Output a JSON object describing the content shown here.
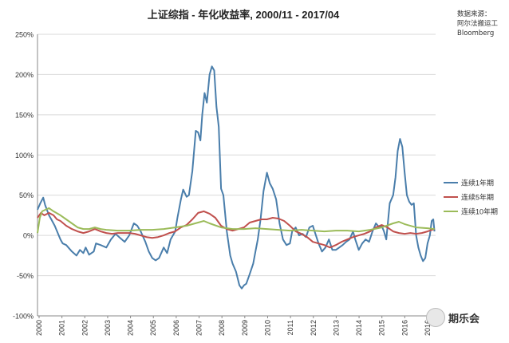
{
  "source": {
    "lines": [
      "数据来源：",
      "阿尔法搬运工",
      "Bloomberg"
    ]
  },
  "watermark": {
    "text": "期乐会"
  },
  "chart_data": {
    "type": "line",
    "title": "上证综指 - 年化收益率, 2000/11 - 2017/04",
    "xlabel": "",
    "ylabel": "",
    "xlim": [
      2000,
      2017.35
    ],
    "ylim": [
      -100,
      250
    ],
    "y_ticks": [
      -100,
      -50,
      0,
      50,
      100,
      150,
      200,
      250
    ],
    "y_tick_labels": [
      "-100%",
      "-50%",
      "0%",
      "50%",
      "100%",
      "150%",
      "200%",
      "250%"
    ],
    "x_tick_labels": [
      "2000",
      "2001",
      "2002",
      "2003",
      "2004",
      "2005",
      "2006",
      "2007",
      "2008",
      "2009",
      "2010",
      "2011",
      "2012",
      "2013",
      "2014",
      "2015",
      "2016",
      "2016"
    ],
    "grid": true,
    "legend_position": "right",
    "series": [
      {
        "name": "连续1年期",
        "color": "#4a7eab",
        "points": [
          [
            2000.0,
            32
          ],
          [
            2000.12,
            40
          ],
          [
            2000.25,
            47
          ],
          [
            2000.33,
            38
          ],
          [
            2000.5,
            25
          ],
          [
            2000.6,
            20
          ],
          [
            2000.75,
            12
          ],
          [
            2001.0,
            -5
          ],
          [
            2001.1,
            -10
          ],
          [
            2001.25,
            -12
          ],
          [
            2001.5,
            -20
          ],
          [
            2001.7,
            -25
          ],
          [
            2001.85,
            -18
          ],
          [
            2002.0,
            -22
          ],
          [
            2002.1,
            -15
          ],
          [
            2002.25,
            -24
          ],
          [
            2002.45,
            -20
          ],
          [
            2002.55,
            -10
          ],
          [
            2002.75,
            -12
          ],
          [
            2003.0,
            -15
          ],
          [
            2003.2,
            -5
          ],
          [
            2003.4,
            2
          ],
          [
            2003.6,
            -3
          ],
          [
            2003.8,
            -8
          ],
          [
            2004.0,
            0
          ],
          [
            2004.2,
            15
          ],
          [
            2004.35,
            12
          ],
          [
            2004.5,
            5
          ],
          [
            2004.7,
            -8
          ],
          [
            2004.85,
            -20
          ],
          [
            2005.0,
            -28
          ],
          [
            2005.15,
            -31
          ],
          [
            2005.3,
            -28
          ],
          [
            2005.5,
            -15
          ],
          [
            2005.65,
            -22
          ],
          [
            2005.8,
            -5
          ],
          [
            2006.0,
            5
          ],
          [
            2006.1,
            22
          ],
          [
            2006.25,
            45
          ],
          [
            2006.35,
            57
          ],
          [
            2006.5,
            48
          ],
          [
            2006.6,
            50
          ],
          [
            2006.75,
            80
          ],
          [
            2006.9,
            130
          ],
          [
            2007.0,
            128
          ],
          [
            2007.1,
            118
          ],
          [
            2007.18,
            150
          ],
          [
            2007.28,
            177
          ],
          [
            2007.38,
            165
          ],
          [
            2007.5,
            200
          ],
          [
            2007.6,
            210
          ],
          [
            2007.7,
            205
          ],
          [
            2007.8,
            160
          ],
          [
            2007.9,
            135
          ],
          [
            2008.0,
            58
          ],
          [
            2008.1,
            50
          ],
          [
            2008.25,
            5
          ],
          [
            2008.4,
            -25
          ],
          [
            2008.5,
            -35
          ],
          [
            2008.65,
            -45
          ],
          [
            2008.8,
            -62
          ],
          [
            2008.9,
            -66
          ],
          [
            2009.0,
            -62
          ],
          [
            2009.1,
            -60
          ],
          [
            2009.25,
            -48
          ],
          [
            2009.4,
            -35
          ],
          [
            2009.5,
            -20
          ],
          [
            2009.6,
            -5
          ],
          [
            2009.72,
            20
          ],
          [
            2009.85,
            55
          ],
          [
            2010.0,
            78
          ],
          [
            2010.12,
            65
          ],
          [
            2010.25,
            58
          ],
          [
            2010.4,
            45
          ],
          [
            2010.55,
            15
          ],
          [
            2010.7,
            -5
          ],
          [
            2010.85,
            -12
          ],
          [
            2011.0,
            -10
          ],
          [
            2011.1,
            5
          ],
          [
            2011.25,
            10
          ],
          [
            2011.4,
            0
          ],
          [
            2011.55,
            2
          ],
          [
            2011.7,
            -2
          ],
          [
            2011.85,
            10
          ],
          [
            2012.0,
            12
          ],
          [
            2012.1,
            3
          ],
          [
            2012.25,
            -10
          ],
          [
            2012.4,
            -20
          ],
          [
            2012.55,
            -15
          ],
          [
            2012.7,
            -5
          ],
          [
            2012.85,
            -18
          ],
          [
            2013.0,
            -18
          ],
          [
            2013.15,
            -15
          ],
          [
            2013.3,
            -12
          ],
          [
            2013.45,
            -8
          ],
          [
            2013.6,
            -5
          ],
          [
            2013.75,
            5
          ],
          [
            2013.85,
            -5
          ],
          [
            2014.0,
            -18
          ],
          [
            2014.15,
            -10
          ],
          [
            2014.3,
            -5
          ],
          [
            2014.45,
            -8
          ],
          [
            2014.6,
            5
          ],
          [
            2014.75,
            15
          ],
          [
            2014.9,
            10
          ],
          [
            2015.0,
            12
          ],
          [
            2015.1,
            5
          ],
          [
            2015.2,
            -5
          ],
          [
            2015.35,
            40
          ],
          [
            2015.5,
            50
          ],
          [
            2015.6,
            72
          ],
          [
            2015.7,
            105
          ],
          [
            2015.8,
            120
          ],
          [
            2015.9,
            110
          ],
          [
            2016.0,
            78
          ],
          [
            2016.1,
            50
          ],
          [
            2016.2,
            42
          ],
          [
            2016.3,
            38
          ],
          [
            2016.4,
            40
          ],
          [
            2016.5,
            0
          ],
          [
            2016.6,
            -15
          ],
          [
            2016.7,
            -25
          ],
          [
            2016.8,
            -32
          ],
          [
            2016.9,
            -28
          ],
          [
            2017.0,
            -10
          ],
          [
            2017.1,
            0
          ],
          [
            2017.18,
            18
          ],
          [
            2017.25,
            20
          ],
          [
            2017.3,
            5
          ]
        ]
      },
      {
        "name": "连续5年期",
        "color": "#c0504d",
        "points": [
          [
            2000.0,
            22
          ],
          [
            2000.15,
            28
          ],
          [
            2000.3,
            25
          ],
          [
            2000.5,
            28
          ],
          [
            2000.7,
            25
          ],
          [
            2000.85,
            20
          ],
          [
            2001.0,
            18
          ],
          [
            2001.25,
            12
          ],
          [
            2001.5,
            8
          ],
          [
            2001.75,
            5
          ],
          [
            2002.0,
            3
          ],
          [
            2002.25,
            5
          ],
          [
            2002.5,
            8
          ],
          [
            2002.75,
            5
          ],
          [
            2003.0,
            3
          ],
          [
            2003.25,
            2
          ],
          [
            2003.5,
            3
          ],
          [
            2003.75,
            3
          ],
          [
            2004.0,
            3
          ],
          [
            2004.25,
            2
          ],
          [
            2004.5,
            0
          ],
          [
            2004.75,
            -2
          ],
          [
            2005.0,
            -3
          ],
          [
            2005.25,
            -2
          ],
          [
            2005.5,
            0
          ],
          [
            2005.75,
            3
          ],
          [
            2006.0,
            5
          ],
          [
            2006.25,
            10
          ],
          [
            2006.5,
            13
          ],
          [
            2006.75,
            20
          ],
          [
            2007.0,
            28
          ],
          [
            2007.25,
            30
          ],
          [
            2007.5,
            27
          ],
          [
            2007.75,
            22
          ],
          [
            2008.0,
            12
          ],
          [
            2008.25,
            8
          ],
          [
            2008.5,
            6
          ],
          [
            2008.75,
            8
          ],
          [
            2009.0,
            10
          ],
          [
            2009.25,
            16
          ],
          [
            2009.5,
            18
          ],
          [
            2009.75,
            20
          ],
          [
            2010.0,
            20
          ],
          [
            2010.25,
            22
          ],
          [
            2010.5,
            21
          ],
          [
            2010.75,
            18
          ],
          [
            2011.0,
            12
          ],
          [
            2011.25,
            5
          ],
          [
            2011.5,
            2
          ],
          [
            2011.75,
            -2
          ],
          [
            2012.0,
            -8
          ],
          [
            2012.25,
            -10
          ],
          [
            2012.5,
            -12
          ],
          [
            2012.75,
            -15
          ],
          [
            2013.0,
            -12
          ],
          [
            2013.25,
            -8
          ],
          [
            2013.5,
            -5
          ],
          [
            2013.75,
            -2
          ],
          [
            2014.0,
            0
          ],
          [
            2014.25,
            2
          ],
          [
            2014.5,
            5
          ],
          [
            2014.75,
            10
          ],
          [
            2015.0,
            13
          ],
          [
            2015.25,
            10
          ],
          [
            2015.5,
            5
          ],
          [
            2015.75,
            3
          ],
          [
            2016.0,
            2
          ],
          [
            2016.25,
            3
          ],
          [
            2016.5,
            2
          ],
          [
            2016.75,
            3
          ],
          [
            2017.0,
            5
          ],
          [
            2017.3,
            8
          ]
        ]
      },
      {
        "name": "连续10年期",
        "color": "#9bbb59",
        "points": [
          [
            2000.0,
            3
          ],
          [
            2000.1,
            22
          ],
          [
            2000.2,
            30
          ],
          [
            2000.35,
            32
          ],
          [
            2000.5,
            34
          ],
          [
            2000.7,
            30
          ],
          [
            2001.0,
            25
          ],
          [
            2001.25,
            20
          ],
          [
            2001.5,
            15
          ],
          [
            2001.75,
            10
          ],
          [
            2002.0,
            8
          ],
          [
            2002.25,
            8
          ],
          [
            2002.5,
            10
          ],
          [
            2002.75,
            8
          ],
          [
            2003.0,
            7
          ],
          [
            2003.5,
            6
          ],
          [
            2004.0,
            6
          ],
          [
            2004.5,
            7
          ],
          [
            2005.0,
            7
          ],
          [
            2005.5,
            8
          ],
          [
            2006.0,
            10
          ],
          [
            2006.5,
            12
          ],
          [
            2007.0,
            16
          ],
          [
            2007.25,
            18
          ],
          [
            2007.5,
            15
          ],
          [
            2008.0,
            10
          ],
          [
            2008.5,
            8
          ],
          [
            2009.0,
            8
          ],
          [
            2009.5,
            9
          ],
          [
            2010.0,
            8
          ],
          [
            2010.5,
            7
          ],
          [
            2011.0,
            6
          ],
          [
            2011.5,
            7
          ],
          [
            2012.0,
            6
          ],
          [
            2012.5,
            5
          ],
          [
            2013.0,
            6
          ],
          [
            2013.5,
            6
          ],
          [
            2014.0,
            5
          ],
          [
            2014.5,
            7
          ],
          [
            2015.0,
            10
          ],
          [
            2015.5,
            15
          ],
          [
            2015.75,
            17
          ],
          [
            2016.0,
            14
          ],
          [
            2016.5,
            10
          ],
          [
            2017.0,
            9
          ],
          [
            2017.3,
            8
          ]
        ]
      }
    ]
  }
}
